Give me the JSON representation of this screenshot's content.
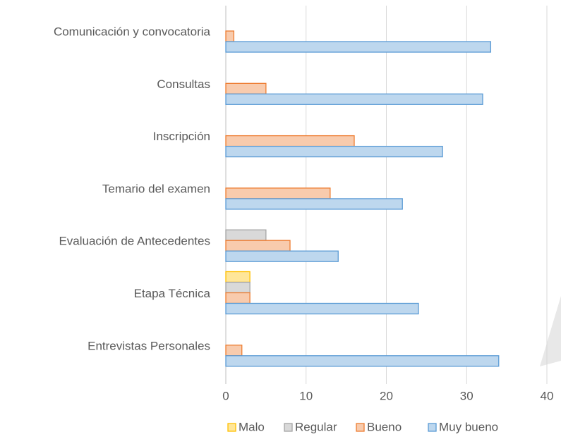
{
  "chart_data": {
    "type": "bar",
    "orientation": "horizontal",
    "categories": [
      "Comunicación y convocatoria",
      "Consultas",
      "Inscripción",
      "Temario del examen",
      "Evaluación de Antecedentes",
      "Etapa Técnica",
      "Entrevistas Personales"
    ],
    "series": [
      {
        "name": "Malo",
        "color": "#ffe699",
        "edge": "#ffc000",
        "values": [
          0,
          0,
          0,
          0,
          0,
          3,
          0
        ]
      },
      {
        "name": "Regular",
        "color": "#d9d9d9",
        "edge": "#a5a5a5",
        "values": [
          0,
          0,
          0,
          0,
          5,
          3,
          0
        ]
      },
      {
        "name": "Bueno",
        "color": "#f8cbad",
        "edge": "#ed7d31",
        "values": [
          1,
          5,
          16,
          13,
          8,
          3,
          2
        ]
      },
      {
        "name": "Muy bueno",
        "color": "#bdd7ee",
        "edge": "#5b9bd5",
        "values": [
          33,
          32,
          27,
          22,
          14,
          24,
          34
        ]
      }
    ],
    "xlim": [
      0,
      40
    ],
    "xticks": [
      0,
      10,
      20,
      30,
      40
    ],
    "grid": true,
    "legend": "bottom"
  }
}
